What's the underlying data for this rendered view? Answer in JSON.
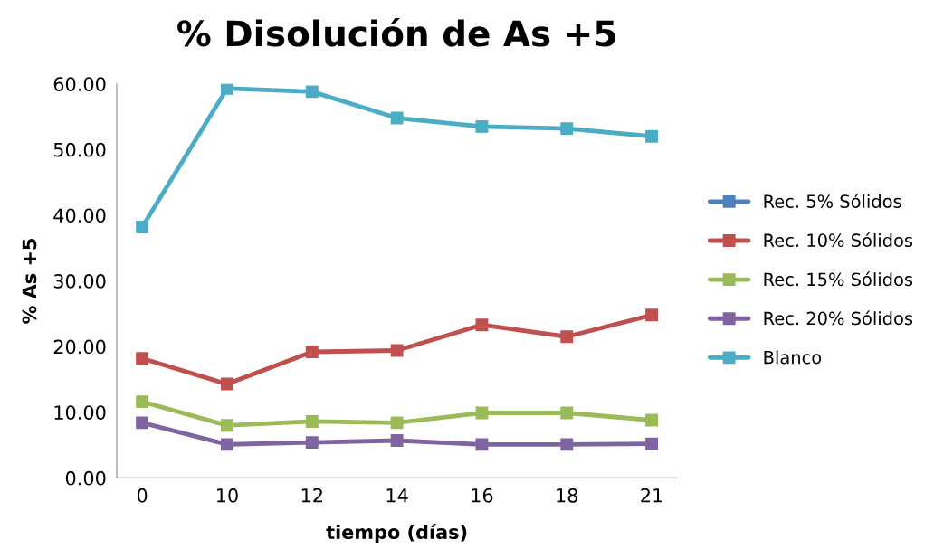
{
  "chart_data": {
    "type": "line",
    "title": "% Disolución de As +5",
    "xlabel": "tiempo (días)",
    "ylabel": "% As +5",
    "categories": [
      "0",
      "10",
      "12",
      "14",
      "16",
      "18",
      "21"
    ],
    "series": [
      {
        "name": "Rec. 5% Sólidos",
        "color": "#4f81bd",
        "values": [
          null,
          null,
          null,
          null,
          null,
          null,
          null
        ]
      },
      {
        "name": "Rec. 10% Sólidos",
        "color": "#c0504d",
        "values": [
          18.2,
          14.3,
          19.2,
          19.4,
          23.3,
          21.5,
          24.8
        ]
      },
      {
        "name": "Rec. 15% Sólidos",
        "color": "#9bbb59",
        "values": [
          11.6,
          8.0,
          8.6,
          8.4,
          9.9,
          9.9,
          8.8
        ]
      },
      {
        "name": "Rec. 20% Sólidos",
        "color": "#8064a2",
        "values": [
          8.4,
          5.1,
          5.4,
          5.7,
          5.1,
          5.1,
          5.2
        ]
      },
      {
        "name": "Blanco",
        "color": "#4bacc6",
        "values": [
          38.2,
          59.3,
          58.8,
          54.8,
          53.5,
          53.2,
          52.0
        ]
      }
    ],
    "ylim": [
      0,
      60
    ],
    "yticks": [
      {
        "value": 0,
        "label": "0.00"
      },
      {
        "value": 10,
        "label": "10.00"
      },
      {
        "value": 20,
        "label": "20.00"
      },
      {
        "value": 30,
        "label": "30.00"
      },
      {
        "value": 40,
        "label": "40.00"
      },
      {
        "value": 50,
        "label": "50.00"
      },
      {
        "value": 60,
        "label": "60.00"
      }
    ],
    "grid": false,
    "legend": "right",
    "marker": "square",
    "line_style": "solid"
  }
}
